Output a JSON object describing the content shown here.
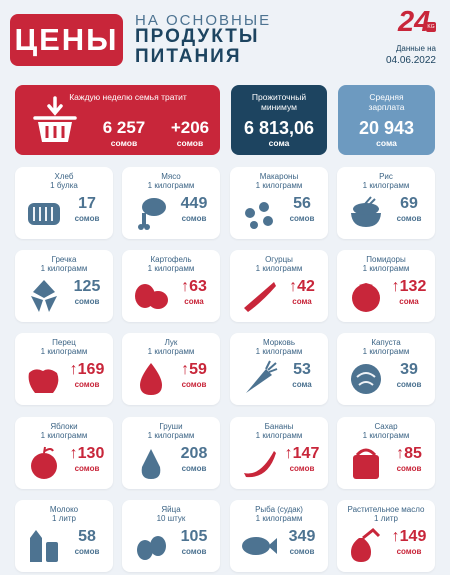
{
  "header": {
    "title": "ЦЕНЫ",
    "subtitle_line1": "НА ОСНОВНЫЕ",
    "subtitle_line2": "ПРОДУКТЫ",
    "subtitle_line3": "ПИТАНИЯ",
    "logo": "24",
    "logo_badge": "KG",
    "date_label": "Данные на",
    "date_value": "04.06.2022"
  },
  "summary": {
    "weekly": {
      "label": "Каждую неделю семья тратит",
      "value1": "6 257",
      "unit1": "сомов",
      "value2": "+206",
      "unit2": "сомов",
      "icon": "basket-icon"
    },
    "minimum": {
      "label": "Прожиточный минимум",
      "value": "6 813,06",
      "unit": "сома"
    },
    "salary": {
      "label": "Средняя зарплата",
      "value": "20 943",
      "unit": "сома"
    }
  },
  "colors": {
    "red": "#c8263a",
    "navy": "#1d4460",
    "blue": "#6d9ac0",
    "steel": "#4d7391"
  },
  "products": [
    {
      "name": "Хлеб",
      "qty": "1 булка",
      "value": "17",
      "unit": "сомов",
      "up": false,
      "icon": "bread-icon"
    },
    {
      "name": "Мясо",
      "qty": "1 килограмм",
      "value": "449",
      "unit": "сомов",
      "up": false,
      "icon": "meat-icon"
    },
    {
      "name": "Макароны",
      "qty": "1 килограмм",
      "value": "56",
      "unit": "сомов",
      "up": false,
      "icon": "pasta-icon"
    },
    {
      "name": "Рис",
      "qty": "1 килограмм",
      "value": "69",
      "unit": "сомов",
      "up": false,
      "icon": "rice-icon"
    },
    {
      "name": "Гречка",
      "qty": "1 килограмм",
      "value": "125",
      "unit": "сомов",
      "up": false,
      "icon": "buckwheat-icon"
    },
    {
      "name": "Картофель",
      "qty": "1 килограмм",
      "value": "↑63",
      "unit": "сома",
      "up": true,
      "icon": "potato-icon"
    },
    {
      "name": "Огурцы",
      "qty": "1 килограмм",
      "value": "↑42",
      "unit": "сома",
      "up": true,
      "icon": "cucumber-icon"
    },
    {
      "name": "Помидоры",
      "qty": "1 килограмм",
      "value": "↑132",
      "unit": "сома",
      "up": true,
      "icon": "tomato-icon"
    },
    {
      "name": "Перец",
      "qty": "1 килограмм",
      "value": "↑169",
      "unit": "сомов",
      "up": true,
      "icon": "pepper-icon"
    },
    {
      "name": "Лук",
      "qty": "1 килограмм",
      "value": "↑59",
      "unit": "сомов",
      "up": true,
      "icon": "onion-icon"
    },
    {
      "name": "Морковь",
      "qty": "1 килограмм",
      "value": "53",
      "unit": "сома",
      "up": false,
      "icon": "carrot-icon"
    },
    {
      "name": "Капуста",
      "qty": "1 килограмм",
      "value": "39",
      "unit": "сомов",
      "up": false,
      "icon": "cabbage-icon"
    },
    {
      "name": "Яблоки",
      "qty": "1 килограмм",
      "value": "↑130",
      "unit": "сомов",
      "up": true,
      "icon": "apple-icon"
    },
    {
      "name": "Груши",
      "qty": "1 килограмм",
      "value": "208",
      "unit": "сомов",
      "up": false,
      "icon": "pear-icon"
    },
    {
      "name": "Бананы",
      "qty": "1 килограмм",
      "value": "↑147",
      "unit": "сомов",
      "up": true,
      "icon": "banana-icon"
    },
    {
      "name": "Сахар",
      "qty": "1 килограмм",
      "value": "↑85",
      "unit": "сомов",
      "up": true,
      "icon": "sugar-icon"
    },
    {
      "name": "Молоко",
      "qty": "1 литр",
      "value": "58",
      "unit": "сомов",
      "up": false,
      "icon": "milk-icon"
    },
    {
      "name": "Яйца",
      "qty": "10 штук",
      "value": "105",
      "unit": "сомов",
      "up": false,
      "icon": "eggs-icon"
    },
    {
      "name": "Рыба (судак)",
      "qty": "1 килограмм",
      "value": "349",
      "unit": "сомов",
      "up": false,
      "icon": "fish-icon"
    },
    {
      "name": "Растительное масло",
      "qty": "1 литр",
      "value": "↑149",
      "unit": "сомов",
      "up": true,
      "icon": "oil-icon"
    }
  ]
}
